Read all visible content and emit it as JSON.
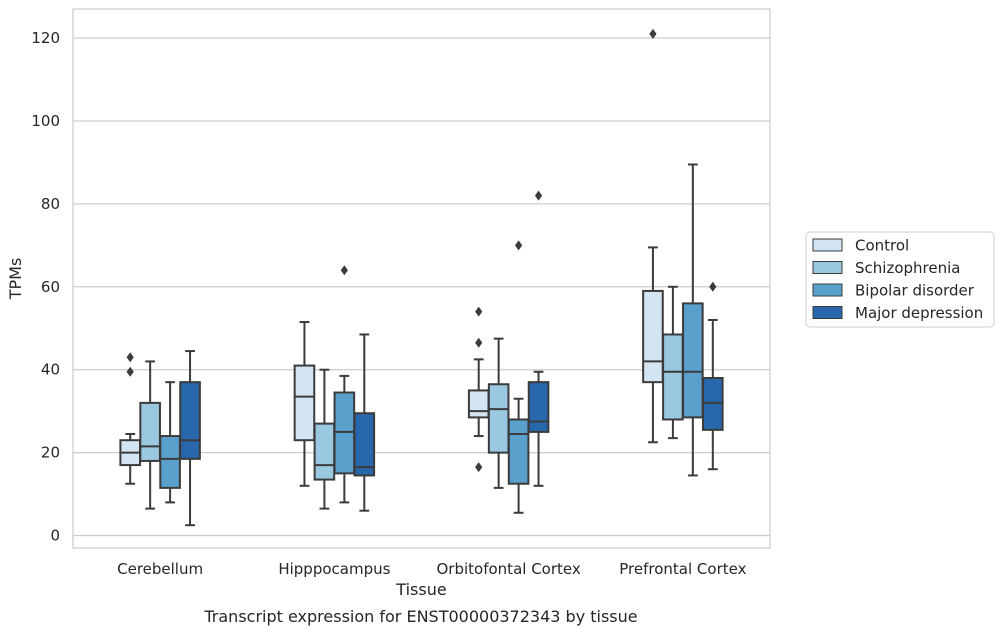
{
  "chart_data": {
    "type": "box",
    "title": "",
    "caption": "Transcript expression for ENST00000372343 by tissue",
    "xlabel": "Tissue",
    "ylabel": "TPMs",
    "ylim": [
      -3,
      127
    ],
    "yticks": [
      0,
      20,
      40,
      60,
      80,
      100,
      120
    ],
    "grid": "horizontal",
    "legend_position": "right",
    "categories": [
      "Cerebellum",
      "Hipppocampus",
      "Orbitofontal Cortex",
      "Prefrontal Cortex"
    ],
    "series": [
      {
        "name": "Control",
        "color": "#d3e4f3",
        "boxes": [
          {
            "whisker_low": 12.5,
            "q1": 17,
            "median": 20,
            "q3": 23,
            "whisker_high": 24.5,
            "outliers": [
              39.5,
              43
            ]
          },
          {
            "whisker_low": 12,
            "q1": 23,
            "median": 33.5,
            "q3": 41,
            "whisker_high": 51.5,
            "outliers": []
          },
          {
            "whisker_low": 24,
            "q1": 28.5,
            "median": 30,
            "q3": 35,
            "whisker_high": 42.5,
            "outliers": [
              16.5,
              46.5,
              54
            ]
          },
          {
            "whisker_low": 22.5,
            "q1": 37,
            "median": 42,
            "q3": 59,
            "whisker_high": 69.5,
            "outliers": [
              121
            ]
          }
        ]
      },
      {
        "name": "Schizophrenia",
        "color": "#9ac8e0",
        "boxes": [
          {
            "whisker_low": 6.5,
            "q1": 18,
            "median": 21.5,
            "q3": 32,
            "whisker_high": 42,
            "outliers": []
          },
          {
            "whisker_low": 6.5,
            "q1": 13.5,
            "median": 17,
            "q3": 27,
            "whisker_high": 40,
            "outliers": []
          },
          {
            "whisker_low": 11.5,
            "q1": 20,
            "median": 30.5,
            "q3": 36.5,
            "whisker_high": 47.5,
            "outliers": []
          },
          {
            "whisker_low": 23.5,
            "q1": 28,
            "median": 39.5,
            "q3": 48.5,
            "whisker_high": 60,
            "outliers": []
          }
        ]
      },
      {
        "name": "Bipolar disorder",
        "color": "#5aa0cc",
        "boxes": [
          {
            "whisker_low": 8,
            "q1": 11.5,
            "median": 18.5,
            "q3": 24,
            "whisker_high": 37,
            "outliers": []
          },
          {
            "whisker_low": 8,
            "q1": 15,
            "median": 25,
            "q3": 34.5,
            "whisker_high": 38.5,
            "outliers": [
              64
            ]
          },
          {
            "whisker_low": 5.5,
            "q1": 12.5,
            "median": 24.5,
            "q3": 28,
            "whisker_high": 33,
            "outliers": [
              70
            ]
          },
          {
            "whisker_low": 14.5,
            "q1": 28.5,
            "median": 39.5,
            "q3": 56,
            "whisker_high": 89.5,
            "outliers": []
          }
        ]
      },
      {
        "name": "Major depression",
        "color": "#2967ad",
        "boxes": [
          {
            "whisker_low": 2.5,
            "q1": 18.5,
            "median": 23,
            "q3": 37,
            "whisker_high": 44.5,
            "outliers": []
          },
          {
            "whisker_low": 6,
            "q1": 14.5,
            "median": 16.5,
            "q3": 29.5,
            "whisker_high": 48.5,
            "outliers": []
          },
          {
            "whisker_low": 12,
            "q1": 25,
            "median": 27.5,
            "q3": 37,
            "whisker_high": 39.5,
            "outliers": [
              82
            ]
          },
          {
            "whisker_low": 16,
            "q1": 25.5,
            "median": 32,
            "q3": 38,
            "whisker_high": 52,
            "outliers": [
              60
            ]
          }
        ]
      }
    ]
  }
}
